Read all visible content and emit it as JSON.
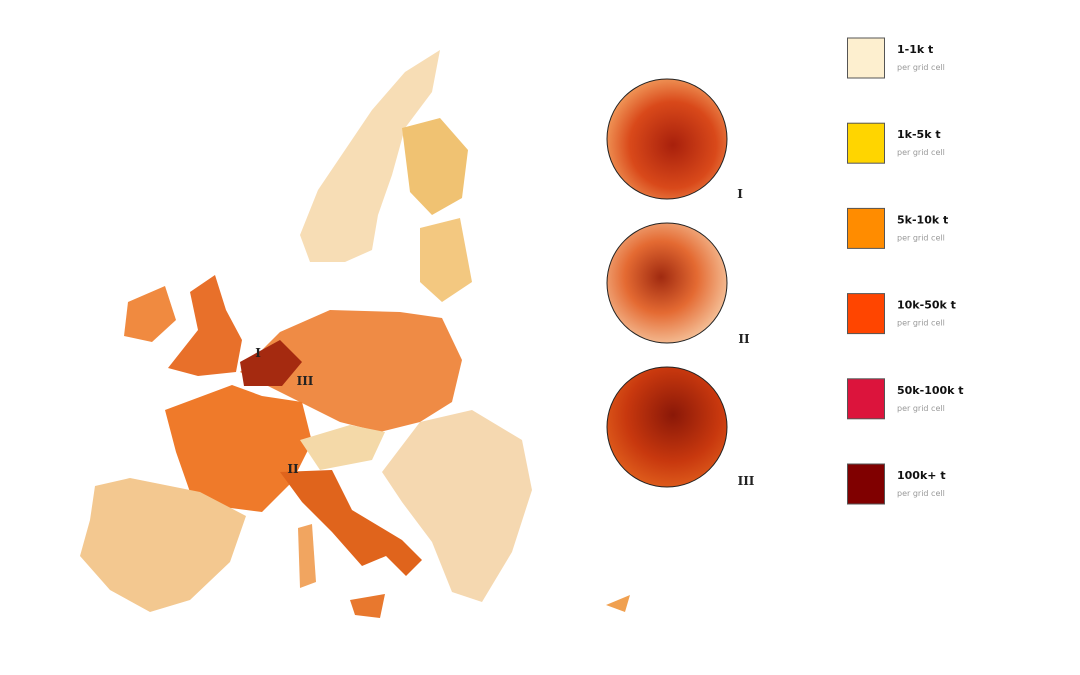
{
  "map": {
    "labels": [
      "I",
      "III",
      "II"
    ]
  },
  "insets": [
    {
      "label": "I"
    },
    {
      "label": "II"
    },
    {
      "label": "III"
    }
  ],
  "legend": [
    {
      "label": "1-1k t",
      "note": "per grid cell",
      "color": "#fdefcf"
    },
    {
      "label": "1k-5k t",
      "note": "per grid cell",
      "color": "#ffd500"
    },
    {
      "label": "5k-10k t",
      "note": "per grid cell",
      "color": "#ff8c00"
    },
    {
      "label": "10k-50k t",
      "note": "per grid cell",
      "color": "#ff4500"
    },
    {
      "label": "50k-100k t",
      "note": "per grid cell",
      "color": "#dc143c"
    },
    {
      "label": "100k+ t",
      "note": "per grid cell",
      "color": "#800000"
    }
  ]
}
